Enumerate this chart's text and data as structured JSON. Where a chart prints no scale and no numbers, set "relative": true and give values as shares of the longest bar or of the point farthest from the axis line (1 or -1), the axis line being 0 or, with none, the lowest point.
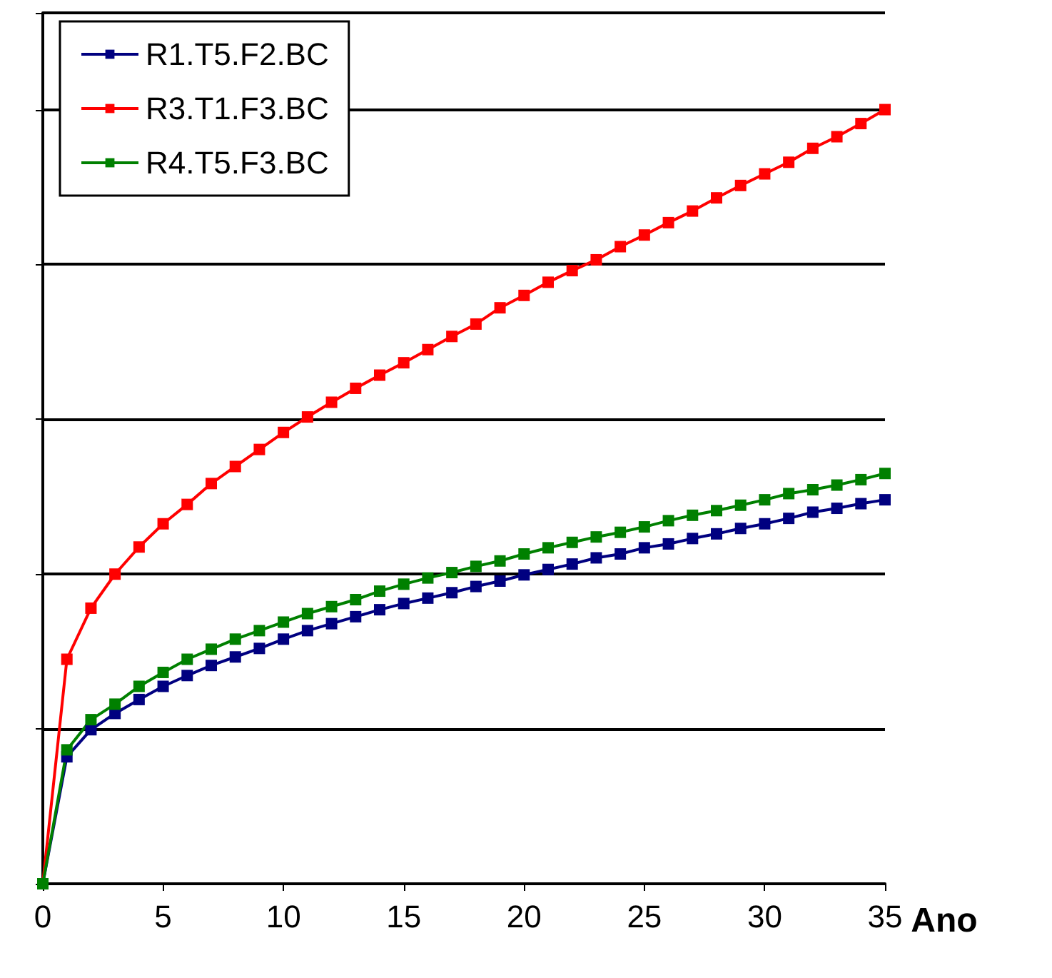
{
  "chart_data": {
    "type": "line",
    "relative": true,
    "xlabel": "Ano",
    "x": [
      0,
      1,
      2,
      3,
      4,
      5,
      6,
      7,
      8,
      9,
      10,
      11,
      12,
      13,
      14,
      15,
      16,
      17,
      18,
      19,
      20,
      21,
      22,
      23,
      24,
      25,
      26,
      27,
      28,
      29,
      30,
      31,
      32,
      33,
      34,
      35
    ],
    "xlim": [
      0,
      35
    ],
    "xticks": [
      0,
      5,
      10,
      15,
      20,
      25,
      30,
      35
    ],
    "grid": "y",
    "legend": "top left",
    "marker": "square",
    "line_style": "solid",
    "series": [
      {
        "name": "R1.T5.F2.BC",
        "color": "#000080",
        "values": [
          0,
          0.164,
          0.199,
          0.22,
          0.238,
          0.255,
          0.269,
          0.282,
          0.293,
          0.304,
          0.316,
          0.327,
          0.336,
          0.345,
          0.354,
          0.362,
          0.369,
          0.376,
          0.384,
          0.391,
          0.399,
          0.406,
          0.413,
          0.421,
          0.426,
          0.434,
          0.439,
          0.446,
          0.452,
          0.459,
          0.465,
          0.472,
          0.48,
          0.485,
          0.491,
          0.496
        ]
      },
      {
        "name": "R3.T1.F3.BC",
        "color": "#ff0000",
        "values": [
          0,
          0.29,
          0.356,
          0.4,
          0.435,
          0.465,
          0.49,
          0.517,
          0.539,
          0.561,
          0.583,
          0.603,
          0.622,
          0.64,
          0.657,
          0.673,
          0.69,
          0.707,
          0.723,
          0.744,
          0.76,
          0.777,
          0.792,
          0.806,
          0.823,
          0.838,
          0.854,
          0.869,
          0.886,
          0.902,
          0.917,
          0.932,
          0.95,
          0.965,
          0.982,
          1
        ]
      },
      {
        "name": "R4.T5.F3.BC",
        "color": "#008000",
        "values": [
          0,
          0.173,
          0.212,
          0.232,
          0.255,
          0.273,
          0.29,
          0.303,
          0.316,
          0.327,
          0.338,
          0.349,
          0.358,
          0.367,
          0.378,
          0.387,
          0.395,
          0.402,
          0.41,
          0.417,
          0.426,
          0.434,
          0.441,
          0.448,
          0.454,
          0.461,
          0.469,
          0.476,
          0.482,
          0.489,
          0.496,
          0.504,
          0.509,
          0.515,
          0.522,
          0.53
        ]
      }
    ]
  }
}
